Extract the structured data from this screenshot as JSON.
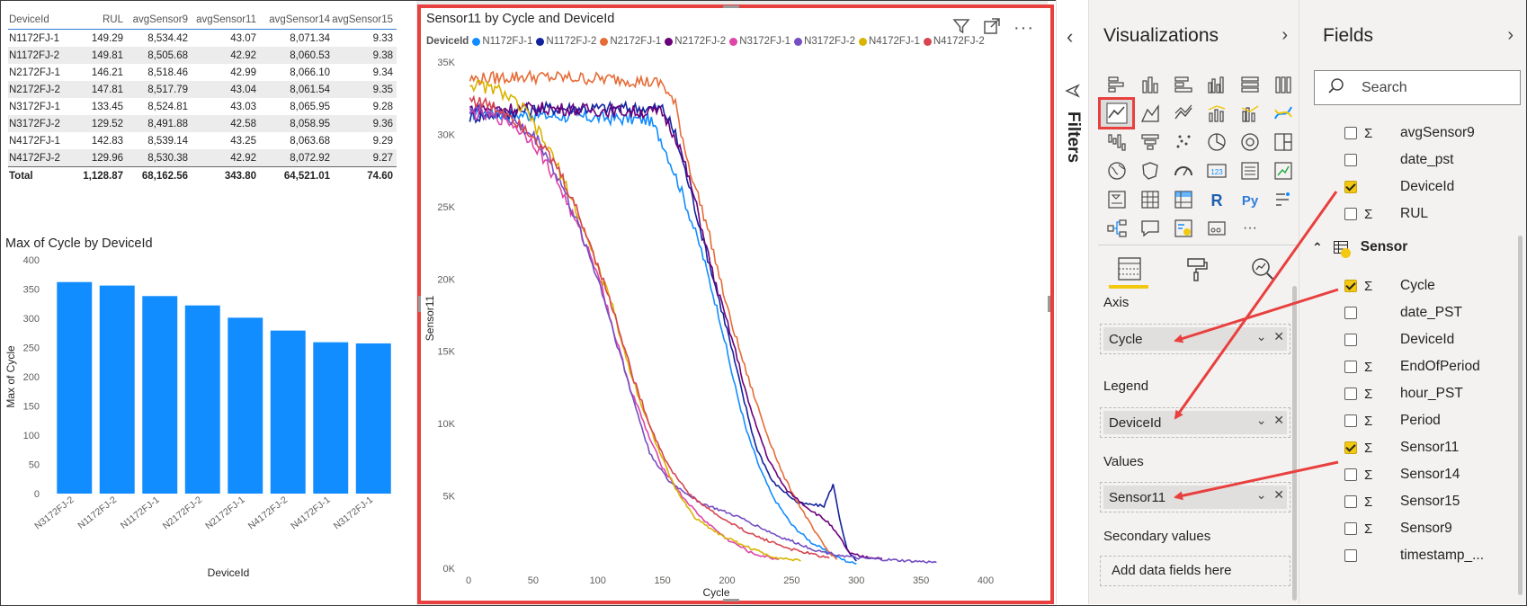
{
  "table": {
    "headers": [
      "DeviceId",
      "RUL",
      "avgSensor9",
      "avgSensor11",
      "avgSensor14",
      "avgSensor15"
    ],
    "rows": [
      [
        "N1172FJ-1",
        "149.29",
        "8,534.42",
        "43.07",
        "8,071.34",
        "9.33"
      ],
      [
        "N1172FJ-2",
        "149.81",
        "8,505.68",
        "42.92",
        "8,060.53",
        "9.38"
      ],
      [
        "N2172FJ-1",
        "146.21",
        "8,518.46",
        "42.99",
        "8,066.10",
        "9.34"
      ],
      [
        "N2172FJ-2",
        "147.81",
        "8,517.79",
        "43.04",
        "8,061.54",
        "9.35"
      ],
      [
        "N3172FJ-1",
        "133.45",
        "8,524.81",
        "43.03",
        "8,065.95",
        "9.28"
      ],
      [
        "N3172FJ-2",
        "129.52",
        "8,491.88",
        "42.58",
        "8,058.95",
        "9.36"
      ],
      [
        "N4172FJ-1",
        "142.83",
        "8,539.14",
        "43.25",
        "8,063.68",
        "9.29"
      ],
      [
        "N4172FJ-2",
        "129.96",
        "8,530.38",
        "42.92",
        "8,072.92",
        "9.27"
      ]
    ],
    "total": [
      "Total",
      "1,128.87",
      "68,162.56",
      "343.80",
      "64,521.01",
      "74.60"
    ]
  },
  "bar_visual": {
    "title": "Max of Cycle by DeviceId"
  },
  "line_visual": {
    "title": "Sensor11 by Cycle and DeviceId",
    "legend_title": "DeviceId",
    "icons": [
      "filter-icon",
      "focus-mode-icon",
      "more-options-icon"
    ]
  },
  "chart_data": [
    {
      "type": "bar",
      "title": "Max of Cycle by DeviceId",
      "xlabel": "DeviceId",
      "ylabel": "Max of Cycle",
      "categories": [
        "N3172FJ-2",
        "N1172FJ-2",
        "N1172FJ-1",
        "N2172FJ-2",
        "N2172FJ-1",
        "N4172FJ-2",
        "N4172FJ-1",
        "N3172FJ-1"
      ],
      "values": [
        362,
        356,
        338,
        322,
        301,
        279,
        259,
        257
      ],
      "ylim": [
        0,
        400
      ],
      "yticks": [
        0,
        50,
        100,
        150,
        200,
        250,
        300,
        350,
        400
      ],
      "color": "#118dff"
    },
    {
      "type": "line",
      "title": "Sensor11 by Cycle and DeviceId",
      "xlabel": "Cycle",
      "ylabel": "Sensor11",
      "xlim": [
        0,
        400
      ],
      "ylim": [
        0,
        35000
      ],
      "xticks": [
        0,
        50,
        100,
        150,
        200,
        250,
        300,
        350,
        400
      ],
      "yticks": [
        0,
        5000,
        10000,
        15000,
        20000,
        25000,
        30000,
        35000
      ],
      "ytick_labels": [
        "0K",
        "5K",
        "10K",
        "15K",
        "20K",
        "25K",
        "30K",
        "35K"
      ],
      "series": [
        {
          "name": "N1172FJ-1",
          "color": "#118dff",
          "points": [
            [
              1,
              31500
            ],
            [
              60,
              31300
            ],
            [
              140,
              31000
            ],
            [
              150,
              29500
            ],
            [
              165,
              26000
            ],
            [
              180,
              22000
            ],
            [
              195,
              17000
            ],
            [
              205,
              13000
            ],
            [
              215,
              9500
            ],
            [
              225,
              7000
            ],
            [
              235,
              5000
            ],
            [
              250,
              3000
            ],
            [
              265,
              1800
            ],
            [
              280,
              1000
            ],
            [
              292,
              500
            ],
            [
              300,
              300
            ]
          ]
        },
        {
          "name": "N1172FJ-2",
          "color": "#12239e",
          "points": [
            [
              1,
              31200
            ],
            [
              60,
              31800
            ],
            [
              150,
              31800
            ],
            [
              160,
              30000
            ],
            [
              172,
              26000
            ],
            [
              185,
              21500
            ],
            [
              200,
              16500
            ],
            [
              212,
              12000
            ],
            [
              222,
              8500
            ],
            [
              235,
              6000
            ],
            [
              255,
              4500
            ],
            [
              275,
              4300
            ],
            [
              282,
              5800
            ],
            [
              287,
              3500
            ],
            [
              293,
              1200
            ],
            [
              300,
              500
            ]
          ]
        },
        {
          "name": "N2172FJ-1",
          "color": "#e66c37",
          "points": [
            [
              1,
              33800
            ],
            [
              40,
              34000
            ],
            [
              120,
              33800
            ],
            [
              150,
              33500
            ],
            [
              160,
              32000
            ],
            [
              170,
              28000
            ],
            [
              185,
              23500
            ],
            [
              200,
              18000
            ],
            [
              215,
              13500
            ],
            [
              230,
              9500
            ],
            [
              243,
              6500
            ],
            [
              255,
              4500
            ],
            [
              268,
              2500
            ],
            [
              278,
              1200
            ],
            [
              285,
              600
            ]
          ]
        },
        {
          "name": "N2172FJ-2",
          "color": "#6b007b",
          "points": [
            [
              1,
              31800
            ],
            [
              60,
              31800
            ],
            [
              150,
              31500
            ],
            [
              162,
              29500
            ],
            [
              175,
              25500
            ],
            [
              190,
              20000
            ],
            [
              205,
              15500
            ],
            [
              218,
              11000
            ],
            [
              232,
              7500
            ],
            [
              245,
              5500
            ],
            [
              262,
              4200
            ],
            [
              278,
              3200
            ],
            [
              288,
              2000
            ],
            [
              295,
              1000
            ],
            [
              305,
              800
            ],
            [
              320,
              700
            ]
          ]
        },
        {
          "name": "N3172FJ-1",
          "color": "#e044a7",
          "points": [
            [
              1,
              31500
            ],
            [
              30,
              31000
            ],
            [
              50,
              29500
            ],
            [
              70,
              26500
            ],
            [
              85,
              23500
            ],
            [
              100,
              20500
            ],
            [
              112,
              16500
            ],
            [
              125,
              12500
            ],
            [
              140,
              9000
            ],
            [
              150,
              7000
            ],
            [
              165,
              5000
            ],
            [
              180,
              3500
            ],
            [
              200,
              2000
            ],
            [
              220,
              1000
            ],
            [
              240,
              600
            ]
          ]
        },
        {
          "name": "N3172FJ-2",
          "color": "#744ec2",
          "points": [
            [
              1,
              31800
            ],
            [
              30,
              31200
            ],
            [
              55,
              29500
            ],
            [
              72,
              26500
            ],
            [
              88,
              23000
            ],
            [
              102,
              19500
            ],
            [
              115,
              15500
            ],
            [
              128,
              11500
            ],
            [
              140,
              8000
            ],
            [
              155,
              6000
            ],
            [
              180,
              4500
            ],
            [
              210,
              3500
            ],
            [
              240,
              2200
            ],
            [
              270,
              1200
            ],
            [
              300,
              700
            ],
            [
              340,
              500
            ],
            [
              362,
              400
            ]
          ]
        },
        {
          "name": "N4172FJ-1",
          "color": "#d9b300",
          "points": [
            [
              1,
              33500
            ],
            [
              25,
              33000
            ],
            [
              45,
              31500
            ],
            [
              65,
              28500
            ],
            [
              80,
              25500
            ],
            [
              95,
              22000
            ],
            [
              110,
              18500
            ],
            [
              122,
              14500
            ],
            [
              135,
              11000
            ],
            [
              148,
              8000
            ],
            [
              160,
              5500
            ],
            [
              175,
              3500
            ],
            [
              195,
              2300
            ],
            [
              215,
              1500
            ],
            [
              235,
              800
            ],
            [
              257,
              500
            ]
          ]
        },
        {
          "name": "N4172FJ-2",
          "color": "#d64550",
          "points": [
            [
              1,
              32500
            ],
            [
              30,
              31500
            ],
            [
              50,
              30000
            ],
            [
              70,
              27500
            ],
            [
              85,
              24500
            ],
            [
              100,
              21000
            ],
            [
              115,
              17000
            ],
            [
              128,
              13000
            ],
            [
              142,
              9500
            ],
            [
              155,
              7000
            ],
            [
              172,
              5000
            ],
            [
              195,
              3500
            ],
            [
              220,
              2300
            ],
            [
              250,
              1300
            ],
            [
              279,
              700
            ]
          ]
        }
      ]
    }
  ],
  "filters": {
    "label": "Filters"
  },
  "visualizations": {
    "title": "Visualizations",
    "axis_label": "Axis",
    "axis_value": "Cycle",
    "legend_label": "Legend",
    "legend_value": "DeviceId",
    "values_label": "Values",
    "values_value": "Sensor11",
    "secondary_label": "Secondary values",
    "secondary_placeholder": "Add data fields here",
    "icons": [
      "stacked-bar-icon",
      "stacked-column-icon",
      "clustered-bar-icon",
      "clustered-column-icon",
      "100-bar-icon",
      "100-column-icon",
      "line-chart-icon",
      "area-chart-icon",
      "stacked-area-icon",
      "line-column-icon",
      "line-clustered-icon",
      "ribbon-icon",
      "waterfall-icon",
      "funnel-icon",
      "scatter-icon",
      "pie-icon",
      "donut-icon",
      "treemap-icon",
      "map-icon",
      "filled-map-icon",
      "gauge-icon",
      "card-icon",
      "multirow-card-icon",
      "kpi-icon",
      "slicer-icon",
      "table-icon",
      "matrix-icon",
      "r-visual-icon",
      "python-visual-icon",
      "key-influencers-icon",
      "decomposition-tree-icon",
      "qa-icon",
      "smart-narrative-icon",
      "paginated-icon",
      "more-icon"
    ]
  },
  "fields": {
    "title": "Fields",
    "search_placeholder": "Search",
    "table_name": "Sensor",
    "items_top": [
      {
        "name": "avgSensor9",
        "sigma": true,
        "checked": false
      },
      {
        "name": "date_pst",
        "sigma": false,
        "checked": false
      },
      {
        "name": "DeviceId",
        "sigma": false,
        "checked": true
      },
      {
        "name": "RUL",
        "sigma": true,
        "checked": false
      }
    ],
    "items_sensor": [
      {
        "name": "Cycle",
        "sigma": true,
        "checked": true
      },
      {
        "name": "date_PST",
        "sigma": false,
        "checked": false
      },
      {
        "name": "DeviceId",
        "sigma": false,
        "checked": false
      },
      {
        "name": "EndOfPeriod",
        "sigma": true,
        "checked": false
      },
      {
        "name": "hour_PST",
        "sigma": true,
        "checked": false
      },
      {
        "name": "Period",
        "sigma": true,
        "checked": false
      },
      {
        "name": "Sensor11",
        "sigma": true,
        "checked": true
      },
      {
        "name": "Sensor14",
        "sigma": true,
        "checked": false
      },
      {
        "name": "Sensor15",
        "sigma": true,
        "checked": false
      },
      {
        "name": "Sensor9",
        "sigma": true,
        "checked": false
      },
      {
        "name": "timestamp_...",
        "sigma": false,
        "checked": false
      }
    ]
  },
  "colors": {
    "accent_red": "#e8403e",
    "yellow": "#f2c811"
  }
}
